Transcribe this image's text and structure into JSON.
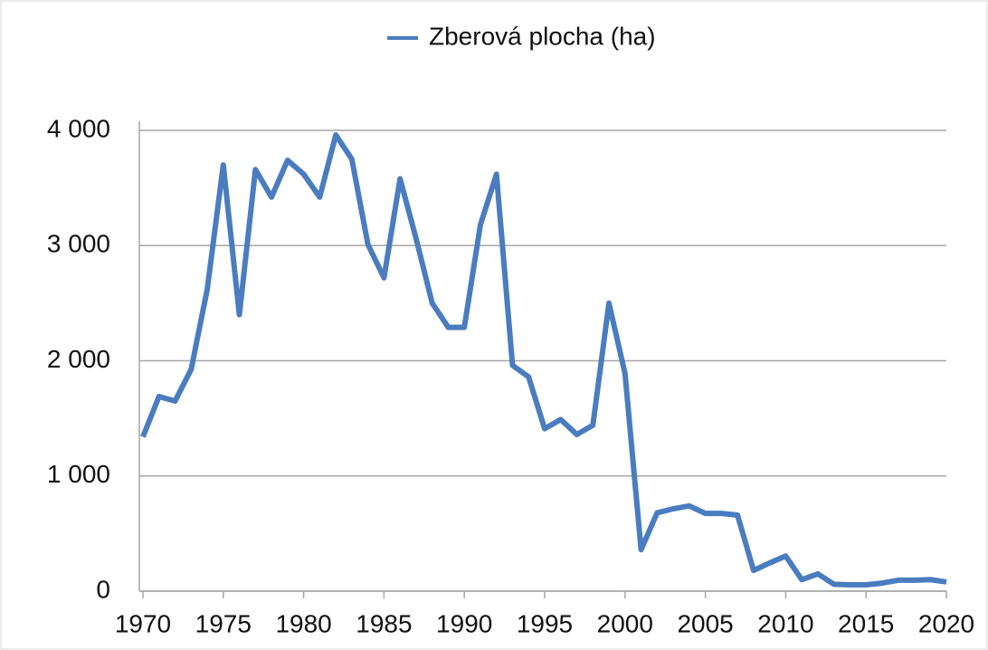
{
  "chart_data": {
    "type": "line",
    "x": [
      1970,
      1971,
      1972,
      1973,
      1974,
      1975,
      1976,
      1977,
      1978,
      1979,
      1980,
      1981,
      1982,
      1983,
      1984,
      1985,
      1986,
      1987,
      1988,
      1989,
      1990,
      1991,
      1992,
      1993,
      1994,
      1995,
      1996,
      1997,
      1998,
      1999,
      2000,
      2001,
      2002,
      2003,
      2004,
      2005,
      2006,
      2007,
      2008,
      2009,
      2010,
      2011,
      2012,
      2013,
      2014,
      2015,
      2016,
      2017,
      2018,
      2019,
      2020
    ],
    "series": [
      {
        "name": "Zberová plocha (ha)",
        "color": "#4a7cc0",
        "values": [
          1340,
          1690,
          1650,
          1925,
          2620,
          3700,
          2400,
          3660,
          3420,
          3740,
          3620,
          3420,
          3960,
          3750,
          3010,
          2720,
          3580,
          3060,
          2500,
          2290,
          2290,
          3180,
          3620,
          1960,
          1860,
          1410,
          1490,
          1360,
          1440,
          2500,
          1890,
          360,
          680,
          715,
          740,
          675,
          675,
          660,
          180,
          245,
          305,
          100,
          150,
          60,
          55,
          55,
          70,
          95,
          95,
          100,
          80
        ]
      }
    ],
    "xlim": [
      1970,
      2020
    ],
    "xticks": [
      1970,
      1975,
      1980,
      1985,
      1990,
      1995,
      2000,
      2005,
      2010,
      2015,
      2020
    ],
    "ylim": [
      0,
      4000
    ],
    "yticks": [
      0,
      {
        "value": 1000,
        "label": "1 000"
      },
      {
        "value": 2000,
        "label": "2 000"
      },
      {
        "value": 3000,
        "label": "3 000"
      },
      {
        "value": 4000,
        "label": "4 000"
      }
    ],
    "grid": true
  }
}
